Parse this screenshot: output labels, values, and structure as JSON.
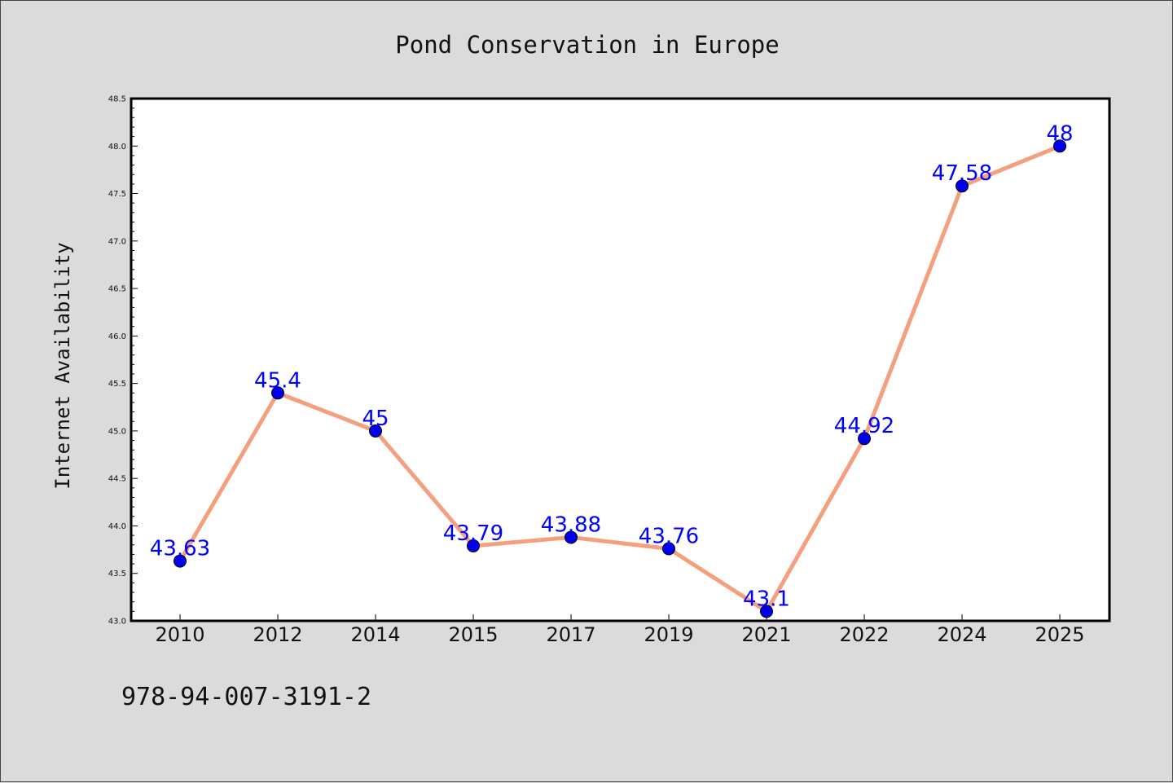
{
  "chart_data": {
    "type": "line",
    "title": "Pond Conservation in Europe",
    "xlabel": "",
    "ylabel": "Internet Availability",
    "categories": [
      "2010",
      "2012",
      "2014",
      "2015",
      "2017",
      "2019",
      "2021",
      "2022",
      "2024",
      "2025"
    ],
    "series": [
      {
        "values": [
          43.63,
          45.4,
          45,
          43.79,
          43.88,
          43.76,
          43.1,
          44.92,
          47.58,
          48
        ],
        "data_labels": [
          "43.63",
          "45.4",
          "45",
          "43.79",
          "43.88",
          "43.76",
          "43.1",
          "44.92",
          "47.58",
          "48"
        ],
        "line_color": "#f4a07f",
        "marker_color": "#0000ee"
      }
    ],
    "ylim": [
      43.0,
      48.5
    ],
    "yticks": [
      "43.0",
      "43.5",
      "44.0",
      "44.5",
      "45.0",
      "45.5",
      "46.0",
      "46.5",
      "47.0",
      "47.5",
      "48.0",
      "48.5"
    ],
    "grid": false,
    "legend": "none",
    "label_color": "#0000ff"
  },
  "footnote": "978-94-007-3191-2",
  "colors": {
    "background": "#dbdbdb",
    "plot_background": "#ffffff"
  }
}
